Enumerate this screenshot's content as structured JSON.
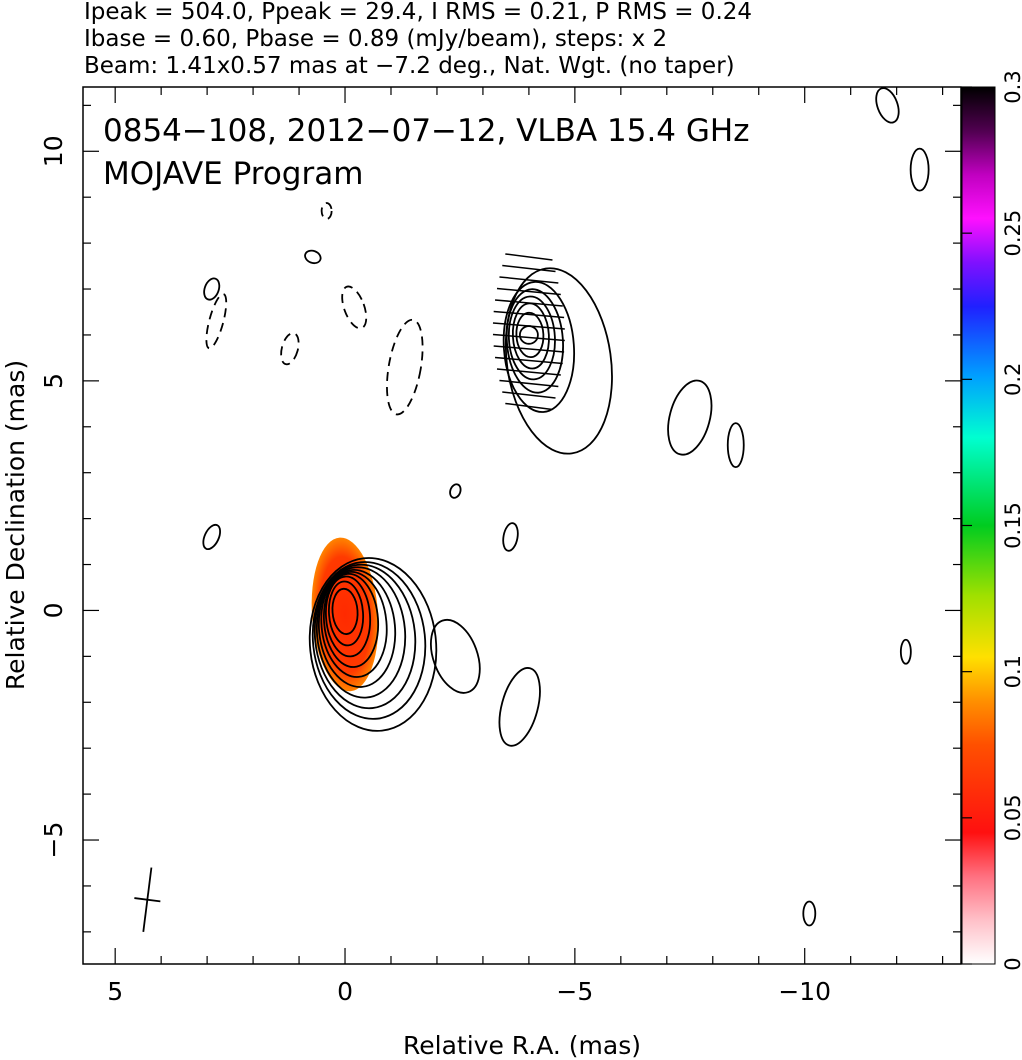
{
  "header": {
    "line1": "Ipeak = 504.0, Ppeak = 29.4, I RMS = 0.21, P RMS = 0.24",
    "line2": "Ibase = 0.60, Pbase = 0.89 (mJy/beam), steps: x 2",
    "line3": "Beam: 1.41x0.57 mas at −7.2 deg., Nat. Wgt. (no taper)"
  },
  "chart_data": {
    "type": "heatmap",
    "title": "0854−108, 2012−07−12, VLBA 15.4 GHz",
    "subtitle": "MOJAVE Program",
    "xlabel": "Relative R.A. (mas)",
    "ylabel": "Relative Declination (mas)",
    "xlim": [
      5.7,
      -13.4
    ],
    "ylim": [
      -7.7,
      11.4
    ],
    "x_ticks": [
      {
        "value": 5,
        "label": "5"
      },
      {
        "value": 0,
        "label": "0"
      },
      {
        "value": -5,
        "label": "−5"
      },
      {
        "value": -10,
        "label": "−10"
      }
    ],
    "y_ticks": [
      {
        "value": -5,
        "label": "−5"
      },
      {
        "value": 0,
        "label": "0"
      },
      {
        "value": 5,
        "label": "5"
      },
      {
        "value": 10,
        "label": "10"
      }
    ],
    "colorbar": {
      "range": [
        0,
        0.3
      ],
      "ticks": [
        {
          "value": 0,
          "label": "0"
        },
        {
          "value": 0.05,
          "label": "0.05"
        },
        {
          "value": 0.1,
          "label": "0.1"
        },
        {
          "value": 0.15,
          "label": "0.15"
        },
        {
          "value": 0.2,
          "label": "0.2"
        },
        {
          "value": 0.25,
          "label": "0.25"
        },
        {
          "value": 0.3,
          "label": "0.3"
        }
      ]
    },
    "beam": {
      "major_mas": 1.41,
      "minor_mas": 0.57,
      "pa_deg": -7.2,
      "x": 4.3,
      "y": -6.3
    },
    "core_component": {
      "x": 0,
      "y": 0,
      "contour_levels": 10,
      "fractional_polarization_peak": 0.06,
      "fractional_polarization_edge": 0.13
    },
    "jet_component": {
      "x": -4.0,
      "y": 6.0,
      "contour_levels": 7,
      "evpa_vector_count": 14
    },
    "isolated_contours": [
      {
        "x": -2.4,
        "y": 2.6
      },
      {
        "x": -3.6,
        "y": 1.6
      },
      {
        "x": -7.5,
        "y": 4.2
      },
      {
        "x": -8.5,
        "y": 3.6
      },
      {
        "x": -12.2,
        "y": -0.9
      },
      {
        "x": -10.1,
        "y": -6.6
      },
      {
        "x": -12.5,
        "y": 9.6
      },
      {
        "x": -11.8,
        "y": 11.0
      },
      {
        "x": 2.9,
        "y": 7.0
      },
      {
        "x": 2.9,
        "y": 1.6
      },
      {
        "x": 0.7,
        "y": 7.7
      }
    ],
    "negative_contours": [
      {
        "x": 2.8,
        "y": 6.3
      },
      {
        "x": 1.2,
        "y": 5.7
      },
      {
        "x": 0.4,
        "y": 8.7
      },
      {
        "x": -0.2,
        "y": 6.6
      },
      {
        "x": -1.3,
        "y": 5.3
      }
    ]
  },
  "colors": {
    "contour": "#000000",
    "pol_core": "#ff3000",
    "pol_edge": "#ff8000"
  }
}
